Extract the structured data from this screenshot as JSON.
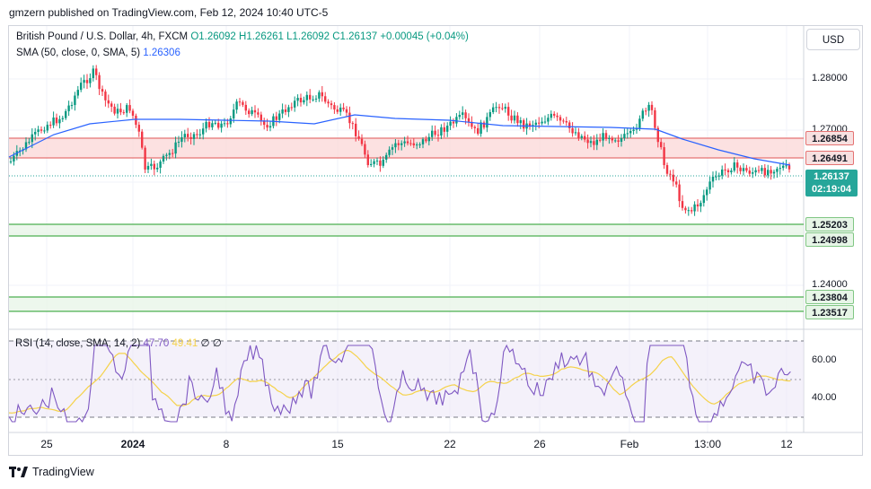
{
  "header": {
    "published": "gmzern published on TradingView.com, Feb 12, 2024 10:40 UTC-5"
  },
  "legend": {
    "symbol": "British Pound / U.S. Dollar, 4h, FXCM",
    "ohlc": "O1.26092 H1.26261 L1.26092 C1.26137 +0.00045 (+0.04%)",
    "sma_label": "SMA (50, close, 0, SMA, 5)",
    "sma_value": "1.26306"
  },
  "rsi": {
    "label": "RSI (14, close, SMA, 14, 2)",
    "value": "47.70",
    "sma_value": "49.41",
    "extra": "∅ ∅"
  },
  "currency_button": "USD",
  "price_axis": {
    "ticks": [
      "1.28000",
      "1.27000",
      "1.24000"
    ],
    "rsi_ticks": [
      "60.00",
      "40.00"
    ]
  },
  "levels": {
    "resistance_top": "1.26854",
    "resistance_bottom": "1.26491",
    "current_price": "1.26137",
    "countdown": "02:19:04",
    "support_1_top": "1.25203",
    "support_1_bottom": "1.24998",
    "support_2_top": "1.23804",
    "support_2_bottom": "1.23517"
  },
  "time_axis": {
    "labels": [
      {
        "text": "25",
        "bold": false
      },
      {
        "text": "2024",
        "bold": true
      },
      {
        "text": "8",
        "bold": false
      },
      {
        "text": "15",
        "bold": false
      },
      {
        "text": "22",
        "bold": false
      },
      {
        "text": "26",
        "bold": false
      },
      {
        "text": "Feb",
        "bold": false
      },
      {
        "text": "13:00",
        "bold": false
      },
      {
        "text": "12",
        "bold": false
      }
    ]
  },
  "footer": {
    "brand": "TradingView"
  },
  "colors": {
    "up": "#089981",
    "down": "#f23645",
    "sma": "#2962ff",
    "rsi": "#7e57c2",
    "rsi_sma": "#f5d24a",
    "resistance_zone": "#f8c8c8",
    "support_zone": "#4caf50"
  }
}
